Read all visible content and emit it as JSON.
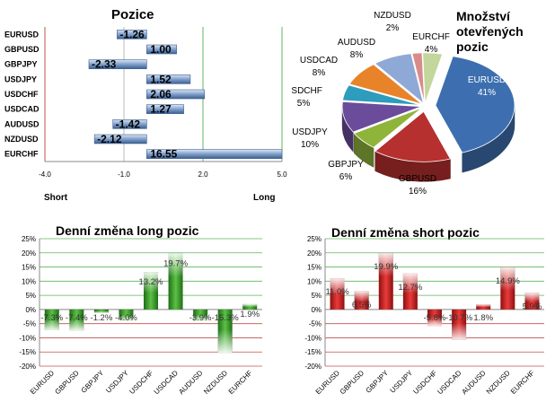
{
  "chart_data": [
    {
      "type": "bar",
      "orientation": "horizontal",
      "title": "Pozice",
      "categories": [
        "EURUSD",
        "GBPUSD",
        "GBPJPY",
        "USDJPY",
        "USDCHF",
        "USDCAD",
        "AUDUSD",
        "NZDUSD",
        "EURCHF"
      ],
      "values": [
        -1.26,
        1.0,
        -2.33,
        1.52,
        2.06,
        1.27,
        -1.42,
        -2.12,
        16.55
      ],
      "value_labels": [
        "-1.26",
        "1.00",
        "-2.33",
        "1.52",
        "2.06",
        "1.27",
        "-1.42",
        "-2.12",
        "16.55"
      ],
      "xlim": [
        -4.0,
        5.0
      ],
      "x_ticks": [
        "-4.0",
        "-1.0",
        "2.0",
        "5.0"
      ],
      "left_label": "Short",
      "right_label": "Long"
    },
    {
      "type": "pie",
      "title_lines": [
        "Množství",
        "otevřených",
        "pozic"
      ],
      "slices": [
        {
          "label": "EURUSD",
          "pct": "41%",
          "value": 41,
          "color": "#3d6fb0"
        },
        {
          "label": "GBPUSD",
          "pct": "16%",
          "value": 16,
          "color": "#b5302e"
        },
        {
          "label": "GBPJPY",
          "pct": "6%",
          "value": 6,
          "color": "#8fb43a"
        },
        {
          "label": "USDJPY",
          "pct": "10%",
          "value": 10,
          "color": "#6b4c9a"
        },
        {
          "label": "USDCHF",
          "pct": "5%",
          "value": 5,
          "color": "#2e9cbd"
        },
        {
          "label": "USDCAD",
          "pct": "8%",
          "value": 8,
          "color": "#e8832a"
        },
        {
          "label": "AUDUSD",
          "pct": "8%",
          "value": 8,
          "color": "#8ea9d6"
        },
        {
          "label": "NZDUSD",
          "pct": "2%",
          "value": 2,
          "color": "#d98b8a"
        },
        {
          "label": "EURCHF",
          "pct": "4%",
          "value": 4,
          "color": "#c3d69b"
        }
      ]
    },
    {
      "type": "bar",
      "title": "Denní změna long pozic",
      "categories": [
        "EURUSD",
        "GBPUSD",
        "GBPJPY",
        "USDJPY",
        "USDCHF",
        "USDCAD",
        "AUDUSD",
        "NZDUSD",
        "EURCHF"
      ],
      "values": [
        -7.3,
        -7.4,
        -1.2,
        -4.0,
        13.2,
        19.7,
        -3.9,
        -15.3,
        1.9
      ],
      "value_labels": [
        "-7.3%",
        "-7.4%",
        "-1.2%",
        "-4.0%",
        "13.2%",
        "19.7%",
        "-3.9%",
        "-15.3%",
        "1.9%"
      ],
      "ylim": [
        -20,
        25
      ],
      "y_ticks": [
        "25%",
        "20%",
        "15%",
        "10%",
        "5%",
        "0%",
        "-5%",
        "-10%",
        "-15%",
        "-20%"
      ],
      "color": "#3c9a2c"
    },
    {
      "type": "bar",
      "title": "Denní změna short pozic",
      "categories": [
        "EURUSD",
        "GBPUSD",
        "GBPJPY",
        "USDJPY",
        "USDCHF",
        "USDCAD",
        "AUDUSD",
        "NZDUSD",
        "EURCHF"
      ],
      "values": [
        11.0,
        6.5,
        19.9,
        12.7,
        -5.8,
        -10.7,
        1.8,
        14.9,
        5.9
      ],
      "value_labels": [
        "11.0%",
        "6.5%",
        "19.9%",
        "12.7%",
        "-5.8%",
        "-10.7%",
        "1.8%",
        "14.9%",
        "5.9%"
      ],
      "ylim": [
        -20,
        25
      ],
      "y_ticks": [
        "25%",
        "20%",
        "15%",
        "10%",
        "5%",
        "0%",
        "-5%",
        "-10%",
        "-15%",
        "-20%"
      ],
      "color": "#cc1f1f"
    }
  ]
}
